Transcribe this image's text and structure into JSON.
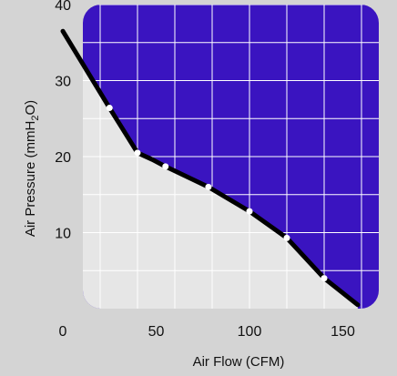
{
  "chart_data": {
    "type": "area",
    "title": "",
    "xlabel": "Air Flow (CFM)",
    "ylabel": "Air Pressure (mmH",
    "ylabel_sub": "2",
    "ylabel_end": "O)",
    "xlim": [
      0,
      160
    ],
    "ylim": [
      0,
      40
    ],
    "x_ticks": [
      0,
      50,
      100,
      150
    ],
    "y_ticks": [
      10,
      20,
      30,
      40
    ],
    "grid": true,
    "colors": {
      "above_curve": "#3a14c0",
      "below_curve": "#e6e6e6",
      "curve": "#000000",
      "grid": "#ffffff",
      "marker_fill": "#ffffff",
      "background": "#d4d4d4"
    },
    "series": [
      {
        "x": [
          0,
          25,
          40,
          48,
          55,
          78,
          100,
          120,
          140,
          158
        ],
        "y": [
          36.5,
          26.4,
          20.5,
          19.6,
          18.7,
          16.0,
          12.8,
          9.3,
          4.0,
          0.5
        ],
        "markers_at": [
          1,
          2,
          4,
          5,
          6,
          7,
          8
        ]
      }
    ]
  }
}
